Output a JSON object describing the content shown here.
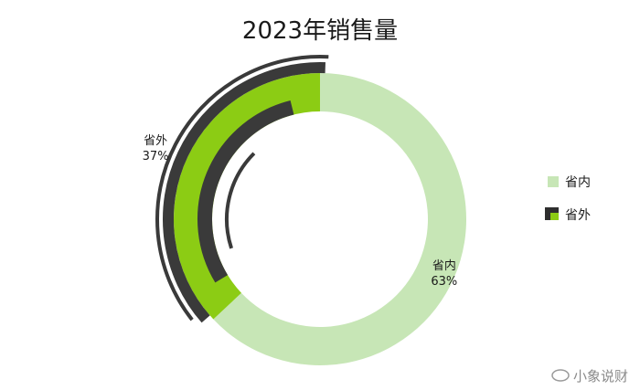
{
  "chart_data": {
    "type": "pie",
    "subtype": "donut",
    "title": "2023年销售量",
    "categories": [
      "省内",
      "省外"
    ],
    "values": [
      63,
      37
    ],
    "labels": [
      "63%",
      "37%"
    ],
    "colors": {
      "省内": "#c7e6b6",
      "省外": "#8ccc14",
      "outline": "#3a3a3a"
    },
    "legend_position": "right"
  },
  "watermark": "小象说财"
}
